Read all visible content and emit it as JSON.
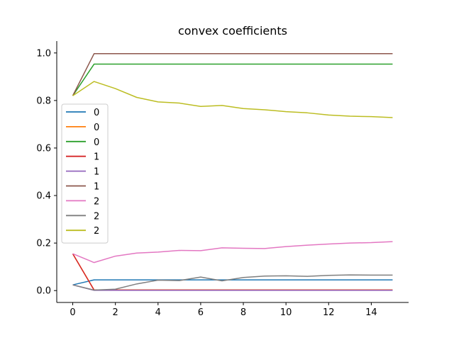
{
  "chart_data": {
    "type": "line",
    "title": "convex coefficients",
    "xlabel": "",
    "ylabel": "",
    "xlim": [
      -0.75,
      15.75
    ],
    "ylim": [
      -0.05,
      1.05
    ],
    "xticks": [
      0,
      2,
      4,
      6,
      8,
      10,
      12,
      14
    ],
    "yticks": [
      0.0,
      0.2,
      0.4,
      0.6,
      0.8,
      1.0
    ],
    "ytick_labels": [
      "0.0",
      "0.2",
      "0.4",
      "0.6",
      "0.8",
      "1.0"
    ],
    "grid": false,
    "legend_position": "center-left",
    "x": [
      0,
      1,
      2,
      3,
      4,
      5,
      6,
      7,
      8,
      9,
      10,
      11,
      12,
      13,
      14,
      15
    ],
    "series": [
      {
        "name": "0",
        "color": "#1f77b4",
        "values": [
          0.024,
          0.045,
          0.045,
          0.045,
          0.045,
          0.045,
          0.045,
          0.045,
          0.045,
          0.045,
          0.045,
          0.045,
          0.045,
          0.045,
          0.045,
          0.045
        ]
      },
      {
        "name": "0",
        "color": "#ff7f0e",
        "values": [
          0.155,
          0.003,
          0.003,
          0.003,
          0.003,
          0.003,
          0.003,
          0.003,
          0.003,
          0.003,
          0.003,
          0.003,
          0.003,
          0.003,
          0.003,
          0.003
        ]
      },
      {
        "name": "0",
        "color": "#2ca02c",
        "values": [
          0.82,
          0.953,
          0.953,
          0.953,
          0.953,
          0.953,
          0.953,
          0.953,
          0.953,
          0.953,
          0.953,
          0.953,
          0.953,
          0.953,
          0.953,
          0.953
        ]
      },
      {
        "name": "1",
        "color": "#d62728",
        "values": [
          0.155,
          0.002,
          0.002,
          0.002,
          0.002,
          0.002,
          0.002,
          0.002,
          0.002,
          0.002,
          0.002,
          0.002,
          0.002,
          0.002,
          0.002,
          0.002
        ]
      },
      {
        "name": "1",
        "color": "#9467bd",
        "values": [
          0.024,
          0.001,
          0.001,
          0.001,
          0.001,
          0.001,
          0.001,
          0.001,
          0.001,
          0.001,
          0.001,
          0.001,
          0.001,
          0.001,
          0.001,
          0.001
        ]
      },
      {
        "name": "1",
        "color": "#8c564b",
        "values": [
          0.82,
          0.997,
          0.997,
          0.997,
          0.997,
          0.997,
          0.997,
          0.997,
          0.997,
          0.997,
          0.997,
          0.997,
          0.997,
          0.997,
          0.997,
          0.997
        ]
      },
      {
        "name": "2",
        "color": "#e377c2",
        "values": [
          0.155,
          0.118,
          0.145,
          0.158,
          0.162,
          0.169,
          0.168,
          0.18,
          0.178,
          0.177,
          0.185,
          0.191,
          0.196,
          0.2,
          0.202,
          0.206
        ]
      },
      {
        "name": "2",
        "color": "#7f7f7f",
        "values": [
          0.024,
          0.002,
          0.006,
          0.028,
          0.044,
          0.042,
          0.057,
          0.041,
          0.055,
          0.061,
          0.062,
          0.06,
          0.064,
          0.066,
          0.065,
          0.065
        ]
      },
      {
        "name": "2",
        "color": "#bcbd22",
        "values": [
          0.82,
          0.88,
          0.85,
          0.813,
          0.794,
          0.789,
          0.775,
          0.779,
          0.766,
          0.761,
          0.753,
          0.748,
          0.739,
          0.734,
          0.732,
          0.728
        ]
      }
    ]
  }
}
